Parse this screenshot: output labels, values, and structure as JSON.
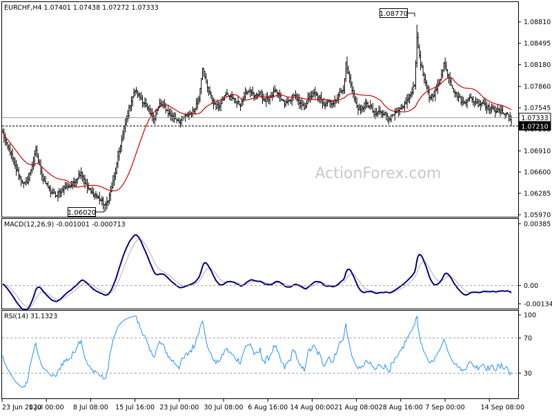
{
  "chart_data": [
    {
      "type": "ohlc",
      "title": "EURCHF,H4 1.07401 1.07438 1.07272 1.07333",
      "symbol": "EURCHF",
      "timeframe": "H4",
      "last_bar": {
        "open": 1.07401,
        "high": 1.07438,
        "low": 1.07272,
        "close": 1.07333
      },
      "ylim": [
        1.0597,
        1.0897
      ],
      "y_ticks": [
        "1.08810",
        "1.08495",
        "1.08180",
        "1.07860",
        "1.07545",
        "1.07233",
        "1.06910",
        "1.06600",
        "1.06285",
        "1.05970"
      ],
      "price_labels": {
        "current": "1.07333",
        "line": "1.07210"
      },
      "annotations": {
        "high": "1.08770",
        "low": "1.06020"
      },
      "watermark": "ActionForex.com",
      "moving_average_color": "#cc0000",
      "bar_color": "#000000",
      "price_anchors": [
        [
          0,
          1.0718
        ],
        [
          3,
          1.07
        ],
        [
          6,
          1.069
        ],
        [
          9,
          1.0672
        ],
        [
          12,
          1.066
        ],
        [
          15,
          1.0648
        ],
        [
          18,
          1.064
        ],
        [
          21,
          1.065
        ],
        [
          24,
          1.067
        ],
        [
          27,
          1.069
        ],
        [
          30,
          1.0668
        ],
        [
          33,
          1.065
        ],
        [
          36,
          1.064
        ],
        [
          40,
          1.0628
        ],
        [
          44,
          1.0625
        ],
        [
          48,
          1.0635
        ],
        [
          52,
          1.0638
        ],
        [
          56,
          1.064
        ],
        [
          60,
          1.065
        ],
        [
          64,
          1.066
        ],
        [
          68,
          1.064
        ],
        [
          72,
          1.063
        ],
        [
          76,
          1.0625
        ],
        [
          80,
          1.0618
        ],
        [
          84,
          1.061
        ],
        [
          88,
          1.063
        ],
        [
          92,
          1.066
        ],
        [
          96,
          1.07
        ],
        [
          100,
          1.073
        ],
        [
          104,
          1.076
        ],
        [
          108,
          1.078
        ],
        [
          112,
          1.077
        ],
        [
          116,
          1.076
        ],
        [
          120,
          1.0745
        ],
        [
          124,
          1.074
        ],
        [
          128,
          1.076
        ],
        [
          132,
          1.0755
        ],
        [
          136,
          1.0745
        ],
        [
          140,
          1.074
        ],
        [
          144,
          1.0735
        ],
        [
          148,
          1.074
        ],
        [
          152,
          1.0745
        ],
        [
          156,
          1.075
        ],
        [
          160,
          1.077
        ],
        [
          163,
          1.0815
        ],
        [
          166,
          1.079
        ],
        [
          170,
          1.077
        ],
        [
          174,
          1.0755
        ],
        [
          178,
          1.076
        ],
        [
          182,
          1.0775
        ],
        [
          186,
          1.077
        ],
        [
          190,
          1.0765
        ],
        [
          194,
          1.076
        ],
        [
          198,
          1.0775
        ],
        [
          202,
          1.078
        ],
        [
          206,
          1.077
        ],
        [
          210,
          1.0775
        ],
        [
          214,
          1.0765
        ],
        [
          218,
          1.077
        ],
        [
          222,
          1.078
        ],
        [
          226,
          1.077
        ],
        [
          230,
          1.076
        ],
        [
          234,
          1.0765
        ],
        [
          238,
          1.0775
        ],
        [
          242,
          1.076
        ],
        [
          246,
          1.0755
        ],
        [
          250,
          1.077
        ],
        [
          254,
          1.0775
        ],
        [
          258,
          1.077
        ],
        [
          262,
          1.076
        ],
        [
          266,
          1.0765
        ],
        [
          270,
          1.076
        ],
        [
          274,
          1.0775
        ],
        [
          278,
          1.078
        ],
        [
          280,
          1.082
        ],
        [
          284,
          1.079
        ],
        [
          288,
          1.076
        ],
        [
          292,
          1.075
        ],
        [
          296,
          1.076
        ],
        [
          300,
          1.0755
        ],
        [
          304,
          1.0745
        ],
        [
          308,
          1.075
        ],
        [
          312,
          1.0745
        ],
        [
          316,
          1.074
        ],
        [
          320,
          1.0745
        ],
        [
          324,
          1.075
        ],
        [
          328,
          1.076
        ],
        [
          332,
          1.077
        ],
        [
          336,
          1.079
        ],
        [
          338,
          1.0855
        ],
        [
          341,
          1.082
        ],
        [
          344,
          1.0795
        ],
        [
          348,
          1.077
        ],
        [
          352,
          1.0775
        ],
        [
          356,
          1.079
        ],
        [
          360,
          1.082
        ],
        [
          364,
          1.08
        ],
        [
          368,
          1.078
        ],
        [
          372,
          1.077
        ],
        [
          376,
          1.076
        ],
        [
          380,
          1.077
        ],
        [
          384,
          1.0765
        ],
        [
          388,
          1.076
        ],
        [
          392,
          1.0762
        ],
        [
          396,
          1.0755
        ],
        [
          400,
          1.0752
        ],
        [
          404,
          1.075
        ],
        [
          408,
          1.0748
        ],
        [
          412,
          1.0745
        ],
        [
          415,
          1.0733
        ]
      ]
    },
    {
      "type": "line",
      "title": "MACD(12,26,9) -0.001001 -0.000713",
      "indicator": "MACD(12,26,9)",
      "macd_value": "-0.001001",
      "signal_value": "-0.000713",
      "ylim": [
        -0.0016,
        0.004
      ],
      "y_ticks": [
        "0.00385",
        "0.00",
        "-0.001348"
      ],
      "zero_line_label": "0.00",
      "macd_color": "#000080",
      "signal_color": "#b0b0b0"
    },
    {
      "type": "line",
      "title": "RSI(14) 31.1323",
      "indicator": "RSI(14)",
      "value": "31.1323",
      "ylim": [
        0,
        100
      ],
      "y_ticks": [
        "100",
        "70",
        "30"
      ],
      "levels": [
        70,
        30
      ],
      "color": "#1e90ff"
    }
  ],
  "x_axis": {
    "labels": [
      "23 Jun 2020",
      "1 Jul 00:00",
      "8 Jul 08:00",
      "15 Jul 16:00",
      "23 Jul 00:00",
      "30 Jul 08:00",
      "6 Aug 16:00",
      "14 Aug 00:00",
      "21 Aug 08:00",
      "28 Aug 16:00",
      "7 Sep 00:00",
      "14 Sep 08:00"
    ]
  }
}
